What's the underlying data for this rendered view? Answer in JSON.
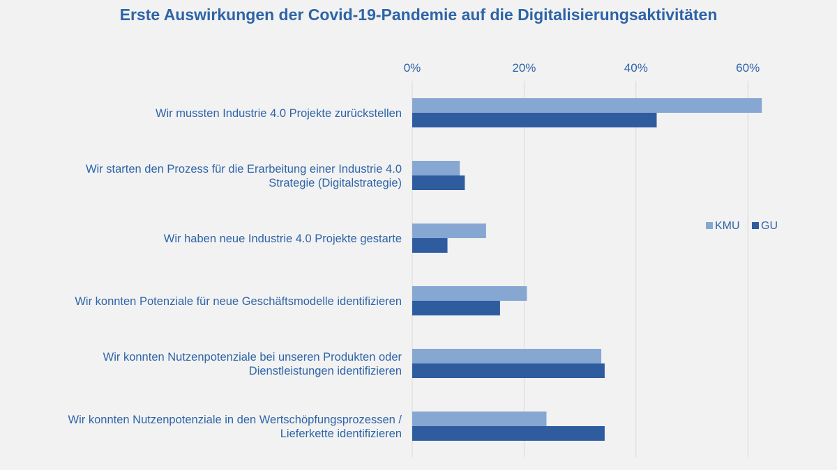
{
  "chart_data": {
    "type": "bar",
    "orientation": "horizontal",
    "title": "Erste Auswirkungen der Covid-19-Pandemie auf die Digitalisierungsaktivitäten",
    "xlabel": "",
    "ylabel": "",
    "xlim": [
      0,
      65
    ],
    "x_ticks": [
      "0%",
      "20%",
      "40%",
      "60%"
    ],
    "x_tick_values": [
      0,
      20,
      40,
      60
    ],
    "x_axis_position": "top",
    "grid": true,
    "legend_position": "right",
    "categories": [
      [
        "Wir mussten Industrie 4.0 Projekte zurückstellen"
      ],
      [
        "Wir starten den Prozess für die Erarbeitung einer Industrie 4.0",
        "Strategie (Digitalstrategie)"
      ],
      [
        "Wir haben neue Industrie 4.0 Projekte gestarte"
      ],
      [
        "Wir konnten Potenziale für neue Geschäftsmodelle identifizieren"
      ],
      [
        "Wir konnten Nutzenpotenziale bei unseren Produkten oder",
        "Dienstleistungen identifizieren"
      ],
      [
        "Wir konnten Nutzenpotenziale in den Wertschöpfungsprozessen /",
        "Lieferkette identifizieren"
      ]
    ],
    "series": [
      {
        "name": "KMU",
        "color": "#87a7d3",
        "values": [
          62.5,
          8.5,
          13.2,
          20.5,
          33.8,
          24.0
        ]
      },
      {
        "name": "GU",
        "color": "#2e5c9f",
        "values": [
          43.7,
          9.4,
          6.3,
          15.7,
          34.4,
          34.4
        ]
      }
    ]
  }
}
